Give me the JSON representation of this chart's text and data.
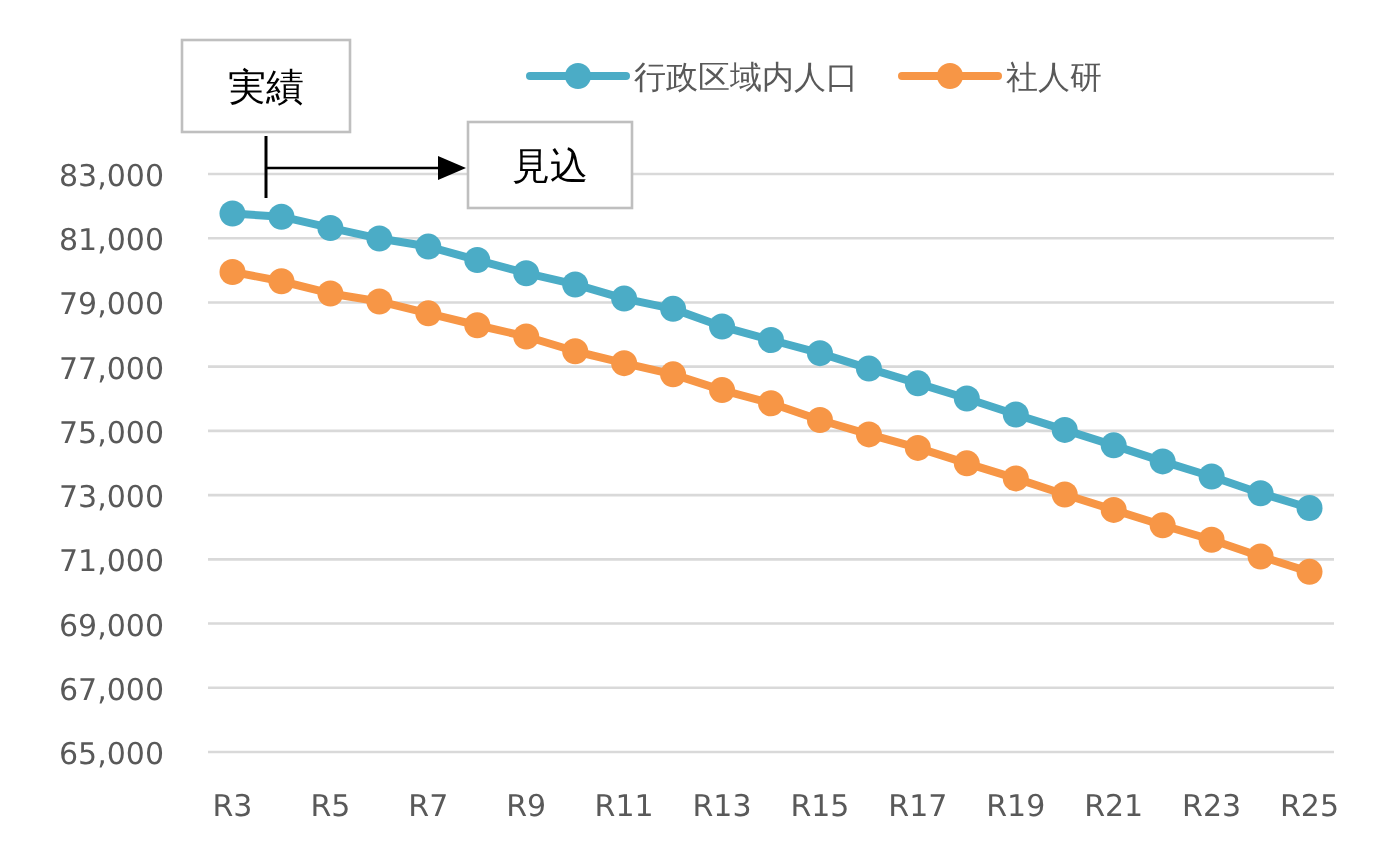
{
  "chart_data": {
    "type": "line",
    "categories": [
      "R3",
      null,
      "R5",
      null,
      "R7",
      null,
      "R9",
      null,
      "R11",
      null,
      "R13",
      null,
      "R15",
      null,
      "R17",
      null,
      "R19",
      null,
      "R21",
      null,
      "R23",
      null,
      "R25"
    ],
    "series": [
      {
        "name": "行政区域内人口",
        "color": "#4bacc6",
        "values": [
          81770,
          81670,
          81320,
          80990,
          80740,
          80320,
          79910,
          79560,
          79120,
          78800,
          78250,
          77830,
          77420,
          76940,
          76480,
          76010,
          75510,
          75030,
          74550,
          74050,
          73580,
          73060,
          72600
        ]
      },
      {
        "name": "社人研",
        "color": "#f79646",
        "values": [
          79950,
          79660,
          79280,
          79030,
          78660,
          78290,
          77940,
          77480,
          77110,
          76760,
          76270,
          75860,
          75340,
          74890,
          74470,
          73990,
          73520,
          73020,
          72540,
          72060,
          71610,
          71090,
          70610
        ]
      }
    ],
    "ylim": [
      65000,
      83000
    ],
    "yticks": [
      {
        "value": 65000,
        "label": "65,000"
      },
      {
        "value": 67000,
        "label": "67,000"
      },
      {
        "value": 69000,
        "label": "69,000"
      },
      {
        "value": 71000,
        "label": "71,000"
      },
      {
        "value": 73000,
        "label": "73,000"
      },
      {
        "value": 75000,
        "label": "75,000"
      },
      {
        "value": 77000,
        "label": "77,000"
      },
      {
        "value": 79000,
        "label": "79,000"
      },
      {
        "value": 81000,
        "label": "81,000"
      },
      {
        "value": 83000,
        "label": "83,000"
      }
    ],
    "grid": "y",
    "legend": "top",
    "marker": "circle",
    "line_style": "solid",
    "annotations": [
      "実績",
      "見込"
    ]
  }
}
